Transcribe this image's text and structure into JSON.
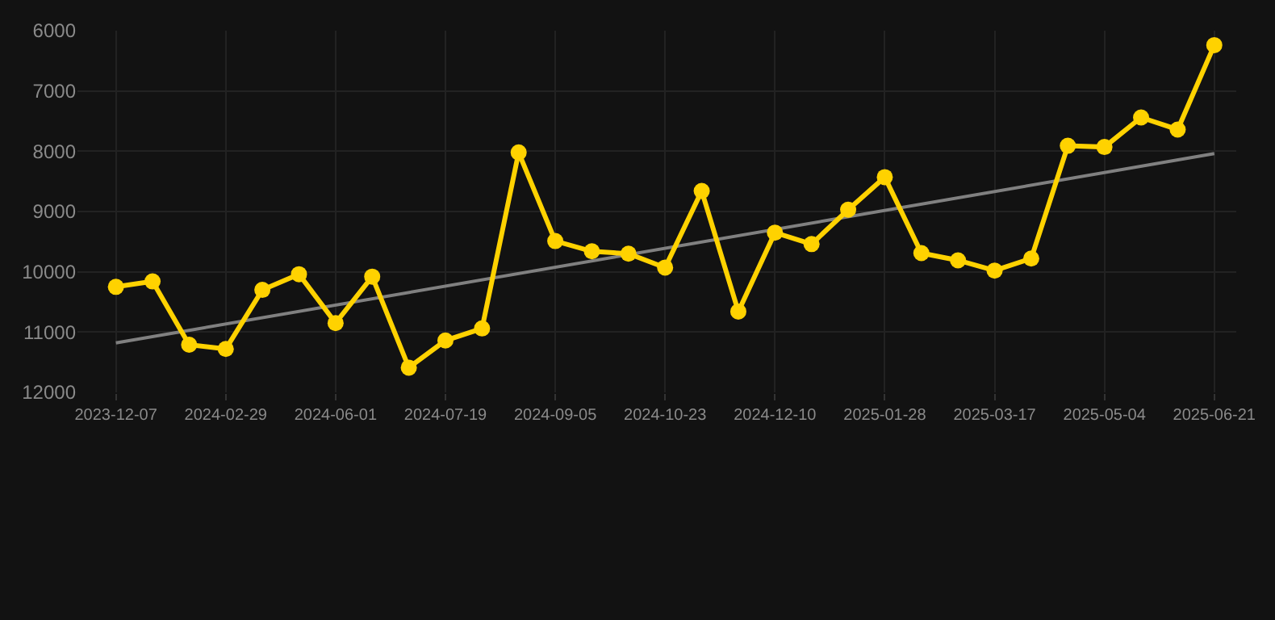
{
  "chart_data": {
    "type": "line",
    "categories": [
      "2023-12-07",
      null,
      null,
      "2024-02-29",
      null,
      null,
      "2024-06-01",
      null,
      null,
      "2024-07-19",
      null,
      null,
      "2024-09-05",
      null,
      null,
      "2024-10-23",
      null,
      null,
      "2024-12-10",
      null,
      null,
      "2025-01-28",
      null,
      null,
      "2025-03-17",
      null,
      null,
      "2025-05-04",
      null,
      null,
      "2025-06-21"
    ],
    "series": [
      {
        "color": "#ffd200",
        "values": [
          10250,
          10160,
          11210,
          11280,
          10300,
          10040,
          10850,
          10080,
          11590,
          11140,
          10940,
          8020,
          9490,
          9660,
          9700,
          9930,
          8660,
          10660,
          9350,
          9540,
          8970,
          8430,
          9690,
          9810,
          9980,
          9780,
          7910,
          7930,
          7440,
          7640,
          6240
        ],
        "marker": "circle"
      },
      {
        "type": "line",
        "color": "#808080",
        "values": [
          11180,
          null,
          null,
          null,
          null,
          null,
          null,
          null,
          null,
          null,
          null,
          null,
          null,
          null,
          null,
          null,
          null,
          null,
          null,
          null,
          null,
          null,
          null,
          null,
          null,
          null,
          null,
          null,
          null,
          null,
          8040
        ],
        "marker": "none"
      }
    ],
    "ylim": [
      12000,
      6000
    ],
    "yticks": [
      6000,
      7000,
      8000,
      9000,
      10000,
      11000,
      12000
    ],
    "grid": true
  }
}
